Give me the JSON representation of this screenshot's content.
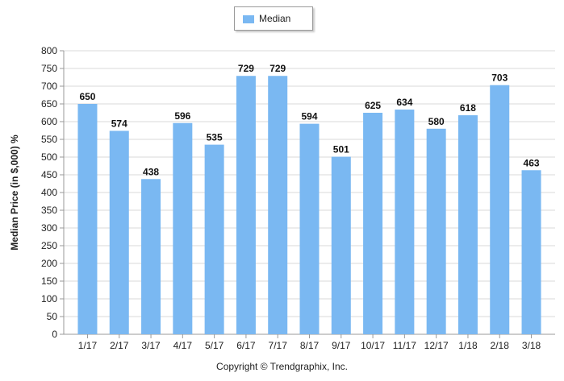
{
  "legend": {
    "label": "Median",
    "color": "#7ab8f2"
  },
  "footer": {
    "copyright": "Copyright © Trendgraphix, Inc."
  },
  "chart_data": {
    "type": "bar",
    "categories": [
      "1/17",
      "2/17",
      "3/17",
      "4/17",
      "5/17",
      "6/17",
      "7/17",
      "8/17",
      "9/17",
      "10/17",
      "11/17",
      "12/17",
      "1/18",
      "2/18",
      "3/18"
    ],
    "series": [
      {
        "name": "Median",
        "values": [
          650,
          574,
          438,
          596,
          535,
          729,
          729,
          594,
          501,
          625,
          634,
          580,
          618,
          703,
          463
        ]
      }
    ],
    "ylabel": "Median Price (in $,000) %",
    "xlabel": "",
    "ylim": [
      0,
      800
    ],
    "ytick_step": 50,
    "grid": true,
    "legend_position": "top-center",
    "data_labels": true
  }
}
